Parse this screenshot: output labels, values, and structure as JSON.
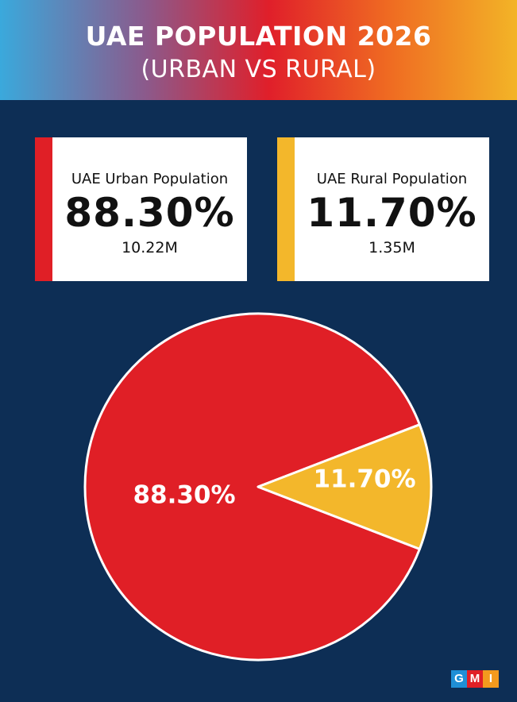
{
  "title": "UAE POPULATION 2026",
  "subtitle": "(URBAN VS RURAL)",
  "cards": [
    {
      "label": "UAE Urban Population",
      "percent": "88.30%",
      "absolute": "10.22M",
      "color": "#e01f26"
    },
    {
      "label": "UAE Rural Population",
      "percent": "11.70%",
      "absolute": "1.35M",
      "color": "#f3b72b"
    }
  ],
  "chart_data": {
    "type": "pie",
    "title": "UAE POPULATION 2026",
    "subtitle": "(URBAN VS RURAL)",
    "slices": [
      {
        "label": "88.30%",
        "category": "UAE Urban Population",
        "value": 88.3,
        "absolute": "10.22M",
        "color": "#e01f26"
      },
      {
        "label": "11.70%",
        "category": "UAE Rural Population",
        "value": 11.7,
        "absolute": "1.35M",
        "color": "#f3b72b"
      }
    ]
  },
  "logo": {
    "letters": [
      "G",
      "M",
      "I"
    ],
    "colors": [
      "#1f8fd6",
      "#e01f26",
      "#f39a1e"
    ]
  }
}
